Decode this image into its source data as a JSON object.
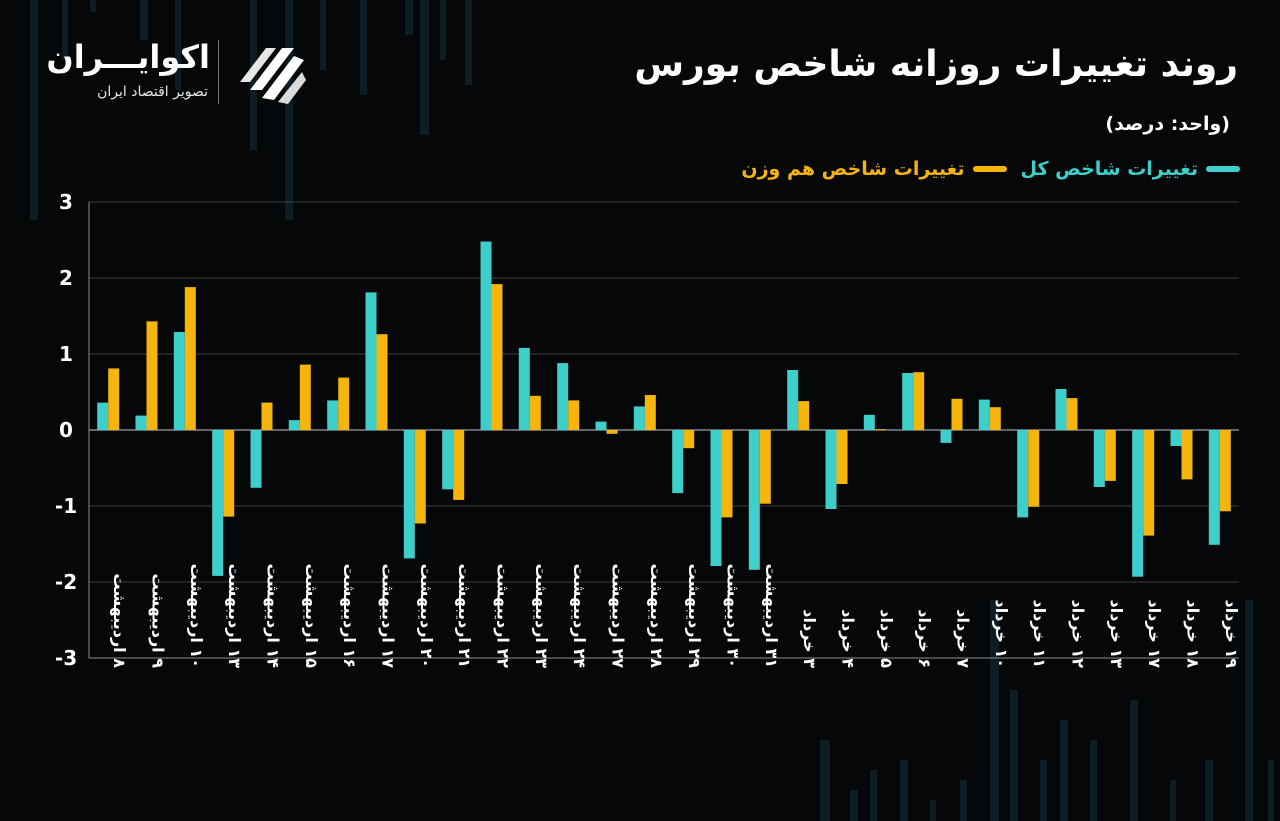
{
  "header": {
    "title": "روند تغییرات روزانه شاخص بورس",
    "unit": "(واحد: درصد)"
  },
  "brand": {
    "name": "اکوایـــران",
    "tagline": "تصویر اقتصاد ایران",
    "logo_icon": "ekoiran-stripes-icon"
  },
  "colors": {
    "background": "#050708",
    "series_total": "#3ecfca",
    "series_equal": "#f5b50c",
    "grid": "#3a3d40"
  },
  "chart_data": {
    "type": "bar",
    "title": "روند تغییرات روزانه شاخص بورس",
    "unit": "(واحد: درصد)",
    "ylim": [
      -3,
      3
    ],
    "yticks": [
      "-3",
      "-2",
      "-1",
      "0",
      "1",
      "2",
      "3"
    ],
    "grid": true,
    "legend_position": "top-right",
    "categories": [
      "۸ اردیبهشت",
      "۹ اردیبهشت",
      "۱۰ اردیبهشت",
      "۱۳ اردیبهشت",
      "۱۴ اردیبهشت",
      "۱۵ اردیبهشت",
      "۱۶ اردیبهشت",
      "۱۷ اردیبهشت",
      "۲۰ اردیبهشت",
      "۲۱ اردیبهشت",
      "۲۲ اردیبهشت",
      "۲۳ اردیبهشت",
      "۲۴ اردیبهشت",
      "۲۷ اردیبهشت",
      "۲۸ اردیبهشت",
      "۲۹ اردیبهشت",
      "۳۰ اردیبهشت",
      "۳۱ اردیبهشت",
      "۳ خرداد",
      "۴ خرداد",
      "۵ خرداد",
      "۶ خرداد",
      "۷ خرداد",
      "۱۰ خرداد",
      "۱۱ خرداد",
      "۱۲ خرداد",
      "۱۳ خرداد",
      "۱۷ خرداد",
      "۱۸ خرداد",
      "۱۹ خرداد"
    ],
    "series": [
      {
        "name": "تغییرات شاخص کل",
        "color": "#3ecfca",
        "values": [
          0.36,
          0.19,
          1.29,
          -1.92,
          -0.76,
          0.13,
          0.39,
          1.81,
          -1.69,
          -0.78,
          2.48,
          1.08,
          0.88,
          0.11,
          0.31,
          -0.83,
          -1.79,
          -1.84,
          0.79,
          -1.04,
          0.2,
          0.75,
          -0.17,
          0.4,
          -1.15,
          0.54,
          -0.75,
          -1.93,
          -0.21,
          -1.51
        ]
      },
      {
        "name": "تغییرات شاخص هم وزن",
        "color": "#f5b50c",
        "values": [
          0.81,
          1.43,
          1.88,
          -1.14,
          0.36,
          0.86,
          0.69,
          1.26,
          -1.23,
          -0.92,
          1.92,
          0.45,
          0.39,
          -0.05,
          0.46,
          -0.24,
          -1.15,
          -0.97,
          0.38,
          -0.71,
          0.01,
          0.76,
          0.41,
          0.3,
          -1.01,
          0.42,
          -0.67,
          -1.39,
          -0.65,
          -1.07
        ]
      }
    ]
  }
}
